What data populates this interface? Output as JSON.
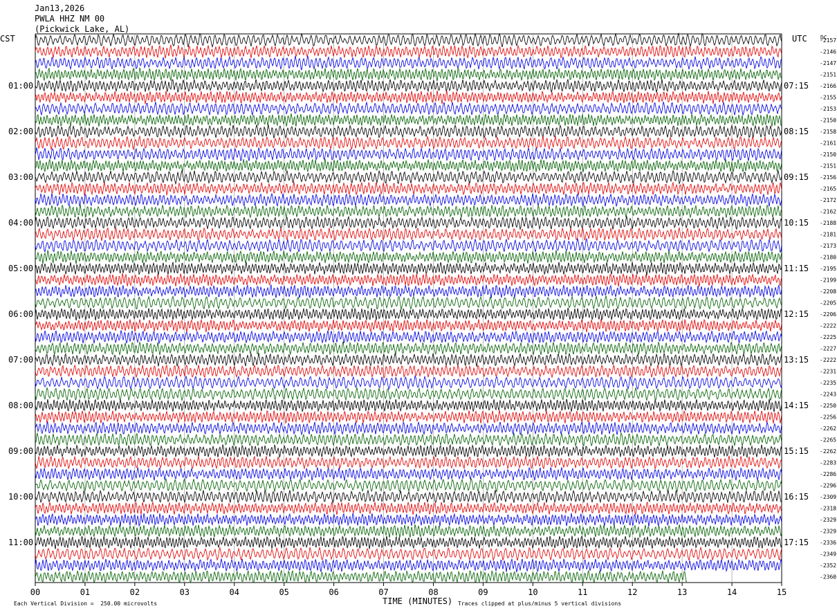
{
  "header": {
    "date": "Jan13,2026",
    "station": "PWLA HHZ NM 00",
    "location": "(Pickwick Lake, AL)"
  },
  "left_tz": "CST",
  "right_tz": "UTC",
  "dc_label": "DC",
  "footer": {
    "scale_note": "Each Vertical Division =  250.00 microvolts",
    "clip_note": "Traces clipped at plus/minus 5 vertical divisions"
  },
  "chart_data": {
    "type": "line",
    "title": "",
    "xlabel": "TIME (MINUTES)",
    "ylabel": "",
    "xlim": [
      0,
      15
    ],
    "x_ticks": [
      "00",
      "01",
      "02",
      "03",
      "04",
      "05",
      "06",
      "07",
      "08",
      "09",
      "10",
      "11",
      "12",
      "13",
      "14",
      "15"
    ],
    "grid": true,
    "trace_colors": [
      "#000000",
      "#e00000",
      "#0000e0",
      "#006000"
    ],
    "traces_per_hour": 4,
    "trace_count": 48,
    "left_hour_labels": [
      "01:00",
      "02:00",
      "03:00",
      "04:00",
      "05:00",
      "06:00",
      "07:00",
      "08:00",
      "09:00",
      "10:00",
      "11:00"
    ],
    "right_hour_labels": [
      "07:15",
      "08:15",
      "09:15",
      "10:15",
      "11:15",
      "12:15",
      "13:15",
      "14:15",
      "15:15",
      "16:15",
      "17:15"
    ],
    "dc_offsets": [
      "-2157",
      "-2146",
      "-2147",
      "-2151",
      "-2166",
      "-2155",
      "-2153",
      "-2150",
      "-2158",
      "-2161",
      "-2150",
      "-2151",
      "-2156",
      "-2165",
      "-2172",
      "-2162",
      "-2188",
      "-2181",
      "-2173",
      "-2180",
      "-2195",
      "-2199",
      "-2208",
      "-2205",
      "-2206",
      "-2222",
      "-2225",
      "-2227",
      "-2222",
      "-2231",
      "-2235",
      "-2243",
      "-2250",
      "-2256",
      "-2262",
      "-2265",
      "-2262",
      "-2283",
      "-2286",
      "-2296",
      "-2309",
      "-2318",
      "-2329",
      "-2329",
      "-2336",
      "-2349",
      "-2352",
      "-2360"
    ],
    "last_trace_end_minute": 13.1
  }
}
